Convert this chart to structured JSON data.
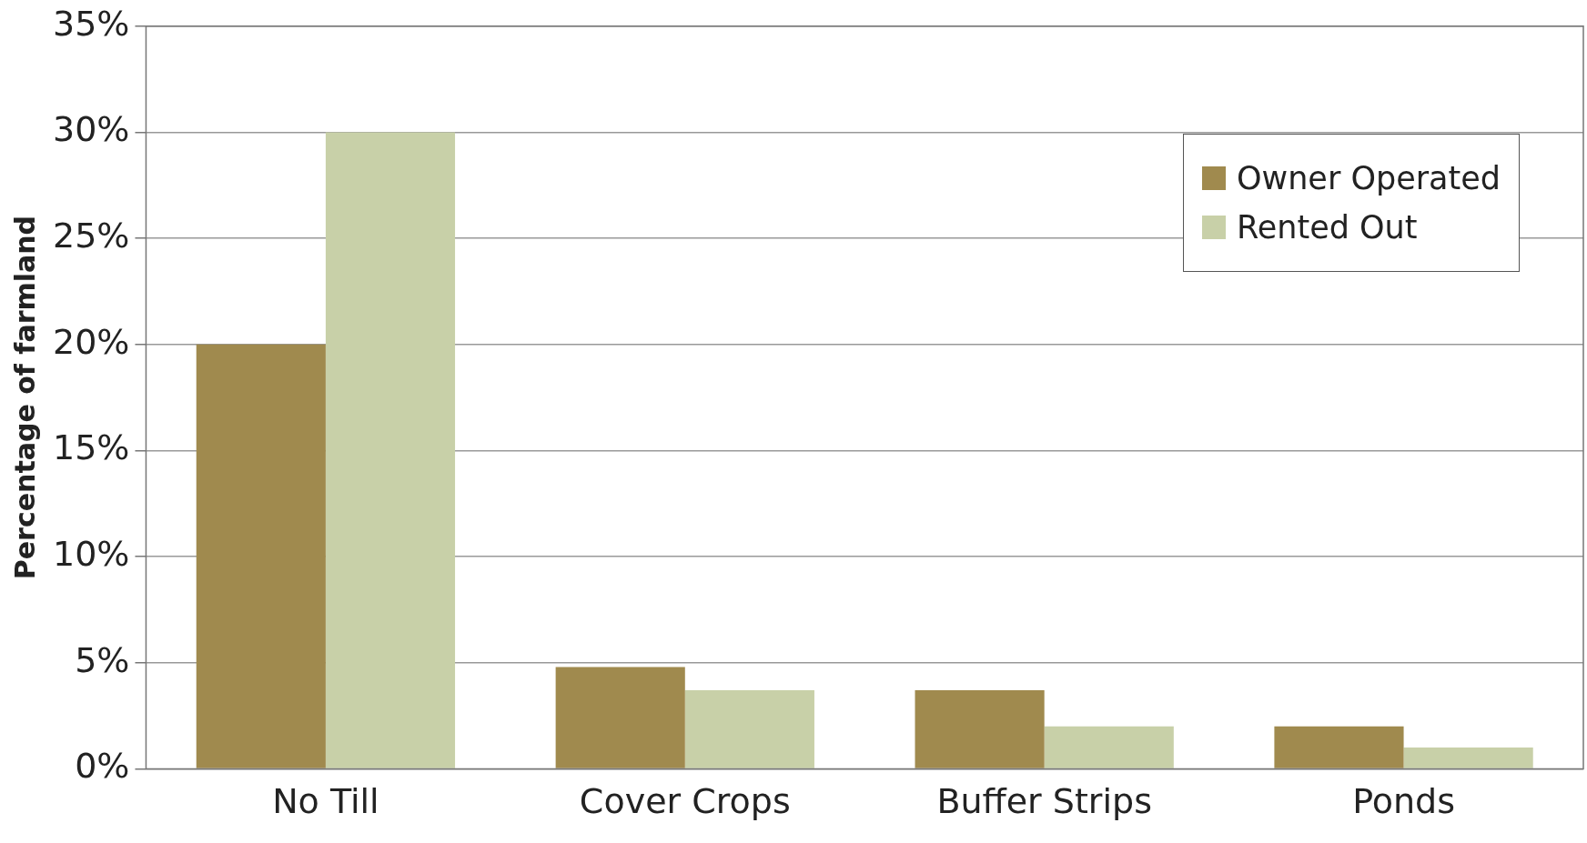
{
  "chart_data": {
    "type": "bar",
    "ylabel": "Percentage of farmland",
    "categories": [
      "No Till",
      "Cover Crops",
      "Buffer Strips",
      "Ponds"
    ],
    "series": [
      {
        "name": "Owner Operated",
        "color": "#a08a4e",
        "values": [
          20,
          4.8,
          3.7,
          2
        ]
      },
      {
        "name": "Rented Out",
        "color": "#c8d0a8",
        "values": [
          30,
          3.7,
          2,
          1
        ]
      }
    ],
    "ylim": [
      0,
      35
    ],
    "yticks": [
      {
        "value": 0,
        "label": "0%"
      },
      {
        "value": 5,
        "label": "5%"
      },
      {
        "value": 10,
        "label": "10%"
      },
      {
        "value": 15,
        "label": "15%"
      },
      {
        "value": 20,
        "label": "20%"
      },
      {
        "value": 25,
        "label": "25%"
      },
      {
        "value": 30,
        "label": "30%"
      },
      {
        "value": 35,
        "label": "35%"
      }
    ],
    "grid": "y",
    "legend": "top right"
  }
}
